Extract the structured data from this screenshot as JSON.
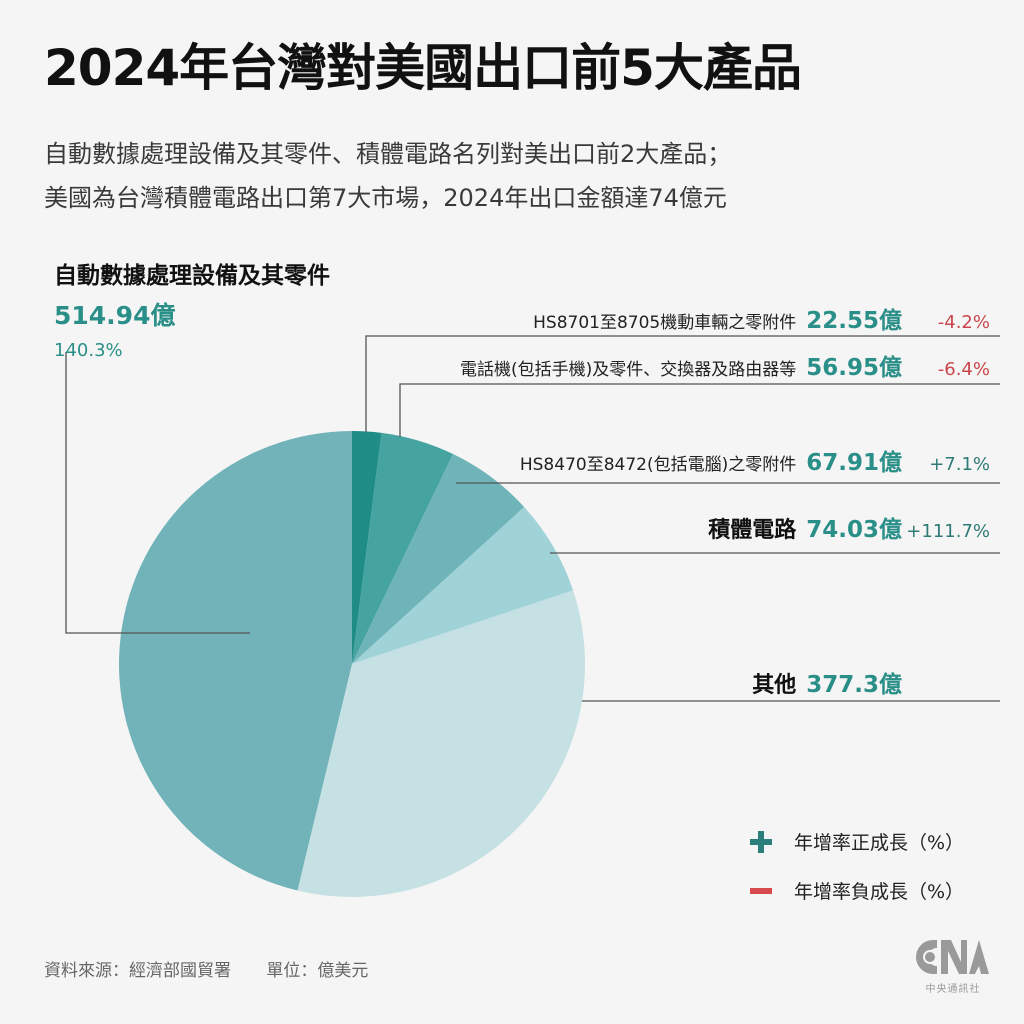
{
  "header": {
    "title": "2024年台灣對美國出口前5大產品",
    "subtitle_line1": "自動數據處理設備及其零件、積體電路名列對美出口前2大產品；",
    "subtitle_line2": "美國為台灣積體電路出口第7大市場，2024年出口金額達74億元"
  },
  "callouts": {
    "auto_data": {
      "label": "自動數據處理設備及其零件",
      "value": "514.94億",
      "pct": "140.3%"
    },
    "vehicle_parts": {
      "label": "HS8701至8705機動車輛之零附件",
      "value": "22.55億",
      "pct": "-4.2%"
    },
    "telephones": {
      "label": "電話機(包括手機)及零件、交換器及路由器等",
      "value": "56.95億",
      "pct": "-6.4%"
    },
    "computer_parts": {
      "label": "HS8470至8472(包括電腦)之零附件",
      "value": "67.91億",
      "pct": "+7.1%"
    },
    "ic": {
      "label": "積體電路",
      "value": "74.03億",
      "pct": "+111.7%"
    },
    "other": {
      "label": "其他",
      "value": "377.3億"
    }
  },
  "legend": {
    "positive": "年增率正成長（%）",
    "negative": "年增率負成長（%）"
  },
  "footer": {
    "source": "資料來源：經濟部國貿署",
    "unit": "單位：億美元",
    "logo_name": "中央通訊社"
  },
  "colors": {
    "value_teal": "#2a8f88",
    "positive": "#2a7f7a",
    "negative": "#d94a4f",
    "background": "#f5f5f5"
  },
  "chart_data": {
    "type": "pie",
    "title": "2024年台灣對美國出口前5大產品",
    "unit": "億美元",
    "categories": [
      "HS8701至8705機動車輛之零附件",
      "電話機(包括手機)及零件、交換器及路由器等",
      "HS8470至8472(包括電腦)之零附件",
      "積體電路",
      "其他",
      "自動數據處理設備及其零件"
    ],
    "values": [
      22.55,
      56.95,
      67.91,
      74.03,
      377.3,
      514.94
    ],
    "yoy_growth_pct": [
      -4.2,
      -6.4,
      7.1,
      111.7,
      null,
      140.3
    ],
    "slice_colors": [
      "#1f8c86",
      "#45a3a0",
      "#6fb4b8",
      "#9fd3d8",
      "#c5e1e4",
      "#72b3b9"
    ],
    "start_angle": "12 o'clock, clockwise",
    "legend": [
      "年增率正成長（%）",
      "年增率負成長（%）"
    ]
  }
}
